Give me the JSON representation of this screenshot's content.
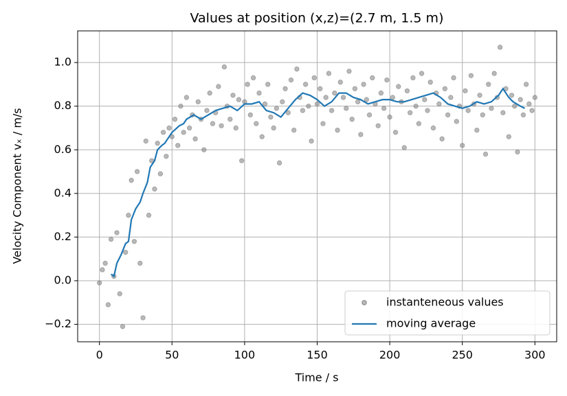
{
  "chart_data": {
    "type": "scatter",
    "title": "Values at position (x,z)=(2.7 m, 1.5 m)",
    "xlabel": "Time / s",
    "ylabel": "Velocity Component vₓ / m/s",
    "xlim": [
      -15,
      315
    ],
    "ylim": [
      -0.28,
      1.145
    ],
    "xticks": [
      0,
      50,
      100,
      150,
      200,
      250,
      300
    ],
    "yticks": [
      {
        "value": -0.2,
        "label": "−0.2"
      },
      {
        "value": 0,
        "label": "0.0"
      },
      0.2,
      0.4,
      0.6,
      0.8,
      {
        "value": 1,
        "label": "1.0"
      }
    ],
    "grid": true,
    "legend": "lower right",
    "series": [
      {
        "name": "instanteneous values",
        "color": "#808080",
        "type": "scatter",
        "x": [
          0,
          2,
          4,
          6,
          8,
          10,
          12,
          14,
          16,
          18,
          20,
          22,
          24,
          26,
          28,
          30,
          32,
          34,
          36,
          38,
          40,
          42,
          44,
          46,
          48,
          50,
          52,
          54,
          56,
          58,
          60,
          62,
          64,
          66,
          68,
          70,
          72,
          74,
          76,
          78,
          80,
          82,
          84,
          86,
          88,
          90,
          92,
          94,
          96,
          98,
          100,
          102,
          104,
          106,
          108,
          110,
          112,
          114,
          116,
          118,
          120,
          122,
          124,
          126,
          128,
          130,
          132,
          134,
          136,
          138,
          140,
          142,
          144,
          146,
          148,
          150,
          152,
          154,
          156,
          158,
          160,
          162,
          164,
          166,
          168,
          170,
          172,
          174,
          176,
          178,
          180,
          182,
          184,
          186,
          188,
          190,
          192,
          194,
          196,
          198,
          200,
          202,
          204,
          206,
          208,
          210,
          212,
          214,
          216,
          218,
          220,
          222,
          224,
          226,
          228,
          230,
          232,
          234,
          236,
          238,
          240,
          242,
          244,
          246,
          248,
          250,
          252,
          254,
          256,
          258,
          260,
          262,
          264,
          266,
          268,
          270,
          272,
          274,
          276,
          278,
          280,
          282,
          284,
          286,
          288,
          290,
          292,
          294,
          296,
          298,
          300
        ],
        "values": [
          -0.01,
          0.05,
          0.08,
          -0.11,
          0.19,
          0.02,
          0.22,
          -0.06,
          -0.21,
          0.13,
          0.3,
          0.46,
          0.18,
          0.5,
          0.08,
          -0.17,
          0.64,
          0.3,
          0.55,
          0.42,
          0.63,
          0.49,
          0.68,
          0.57,
          0.7,
          0.66,
          0.74,
          0.62,
          0.8,
          0.68,
          0.84,
          0.7,
          0.76,
          0.65,
          0.82,
          0.74,
          0.6,
          0.78,
          0.86,
          0.72,
          0.77,
          0.89,
          0.71,
          0.98,
          0.8,
          0.74,
          0.85,
          0.7,
          0.83,
          0.55,
          0.82,
          0.9,
          0.76,
          0.93,
          0.72,
          0.86,
          0.66,
          0.81,
          0.9,
          0.75,
          0.7,
          0.79,
          0.54,
          0.82,
          0.88,
          0.77,
          0.92,
          0.69,
          0.97,
          0.84,
          0.78,
          0.9,
          0.8,
          0.64,
          0.93,
          0.81,
          0.88,
          0.72,
          0.84,
          0.95,
          0.78,
          0.86,
          0.69,
          0.91,
          0.84,
          0.79,
          0.96,
          0.74,
          0.88,
          0.82,
          0.67,
          0.9,
          0.83,
          0.76,
          0.93,
          0.81,
          0.71,
          0.86,
          0.79,
          0.92,
          0.75,
          0.84,
          0.68,
          0.89,
          0.82,
          0.61,
          0.87,
          0.77,
          0.93,
          0.8,
          0.72,
          0.95,
          0.83,
          0.78,
          0.91,
          0.7,
          0.86,
          0.81,
          0.65,
          0.88,
          0.76,
          0.84,
          0.93,
          0.73,
          0.8,
          0.62,
          0.87,
          0.78,
          0.94,
          0.81,
          0.69,
          0.85,
          0.76,
          0.58,
          0.9,
          0.79,
          0.95,
          0.84,
          1.07,
          0.77,
          0.88,
          0.66,
          0.85,
          0.8,
          0.59,
          0.83,
          0.76,
          0.9,
          0.81,
          0.78,
          0.84
        ]
      },
      {
        "name": "moving average",
        "color": "#1f77b4",
        "type": "line",
        "x": [
          8,
          10,
          12,
          15,
          18,
          20,
          22,
          25,
          28,
          30,
          33,
          35,
          38,
          40,
          43,
          45,
          48,
          50,
          55,
          58,
          60,
          65,
          70,
          75,
          80,
          85,
          90,
          95,
          100,
          105,
          110,
          115,
          120,
          125,
          130,
          135,
          140,
          145,
          150,
          155,
          160,
          165,
          170,
          175,
          180,
          185,
          190,
          195,
          200,
          205,
          210,
          215,
          220,
          225,
          230,
          235,
          240,
          245,
          250,
          255,
          260,
          265,
          270,
          275,
          278,
          282,
          285,
          290,
          293
        ],
        "values": [
          0.03,
          0.02,
          0.08,
          0.12,
          0.17,
          0.18,
          0.28,
          0.33,
          0.36,
          0.4,
          0.45,
          0.52,
          0.55,
          0.6,
          0.62,
          0.63,
          0.66,
          0.68,
          0.71,
          0.72,
          0.74,
          0.76,
          0.74,
          0.76,
          0.78,
          0.79,
          0.8,
          0.78,
          0.81,
          0.81,
          0.82,
          0.78,
          0.77,
          0.75,
          0.79,
          0.83,
          0.86,
          0.85,
          0.83,
          0.8,
          0.82,
          0.86,
          0.86,
          0.84,
          0.83,
          0.81,
          0.82,
          0.83,
          0.83,
          0.82,
          0.82,
          0.83,
          0.84,
          0.85,
          0.86,
          0.84,
          0.81,
          0.8,
          0.79,
          0.8,
          0.82,
          0.81,
          0.82,
          0.85,
          0.88,
          0.84,
          0.82,
          0.8,
          0.79
        ]
      }
    ]
  }
}
